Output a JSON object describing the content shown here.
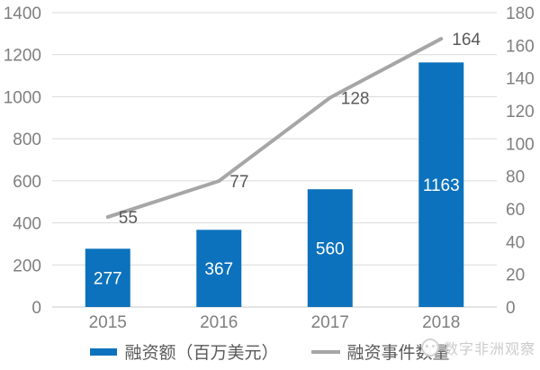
{
  "chart_data": {
    "type": "combo",
    "categories": [
      "2015",
      "2016",
      "2017",
      "2018"
    ],
    "series": [
      {
        "name": "融资额（百万美元）",
        "type": "bar",
        "axis": "left",
        "values": [
          277,
          367,
          560,
          1163
        ],
        "data_labels": [
          "277",
          "367",
          "560",
          "1163"
        ]
      },
      {
        "name": "融资事件数量",
        "type": "line",
        "axis": "right",
        "values": [
          55,
          77,
          128,
          164
        ],
        "data_labels": [
          "55",
          "77",
          "128",
          "164"
        ]
      }
    ],
    "left_axis": {
      "min": 0,
      "max": 1400,
      "step": 200,
      "tick_labels": [
        "0",
        "200",
        "400",
        "600",
        "800",
        "1000",
        "1200",
        "1400"
      ]
    },
    "right_axis": {
      "min": 0,
      "max": 180,
      "step": 20,
      "tick_labels": [
        "0",
        "20",
        "40",
        "60",
        "80",
        "100",
        "120",
        "140",
        "160",
        "180"
      ]
    },
    "grid": "horizontal",
    "legend_position": "bottom"
  },
  "colors": {
    "bar": "#0c72bd",
    "line": "#a6a6a6",
    "grid": "#d9d9d9",
    "axis_line": "#c9c9c9",
    "tick_text": "#7f7f7f",
    "category_text": "#7f7f7f",
    "line_label_text": "#595959",
    "bar_label_text": "#ffffff"
  },
  "legend": {
    "items": [
      {
        "label": "融资额（百万美元）"
      },
      {
        "label": "融资事件数量"
      }
    ]
  },
  "watermark": {
    "text": "数字非洲观察",
    "logo": "panda-circle-logo"
  }
}
